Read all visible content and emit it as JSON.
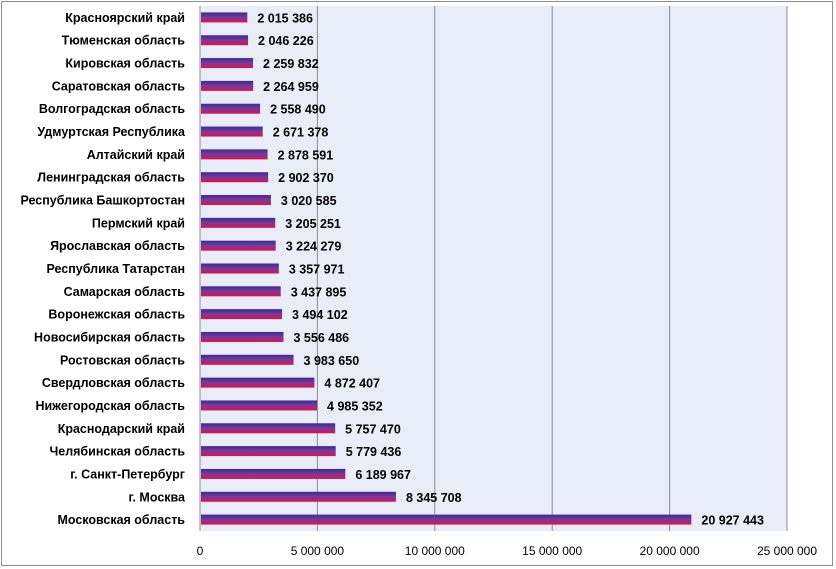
{
  "chart_data": {
    "type": "bar",
    "orientation": "horizontal",
    "title": "",
    "xlabel": "",
    "ylabel": "",
    "xlim": [
      0,
      25000000
    ],
    "x_ticks": [
      0,
      5000000,
      10000000,
      15000000,
      20000000,
      25000000
    ],
    "x_tick_labels": [
      "0",
      "5 000 000",
      "10 000 000",
      "15 000 000",
      "20 000 000",
      "25 000 000"
    ],
    "grid": "vertical",
    "legend": "none",
    "colors": {
      "plot_background": "#e9edf7",
      "bar_top": "#3a2a9a",
      "bar_middle": "#7a3a9a",
      "bar_bottom": "#e0104a",
      "gridline": "#8c8c8c"
    },
    "categories": [
      "Красноярский край",
      "Тюменская область",
      "Кировская область",
      "Саратовская область",
      "Волгоградская область",
      "Удмуртская Республика",
      "Алтайский край",
      "Ленинградская область",
      "Республика Башкортостан",
      "Пермский край",
      "Ярославская область",
      "Республика Татарстан",
      "Самарская область",
      "Воронежская область",
      "Новосибирская область",
      "Ростовская область",
      "Свердловская область",
      "Нижегородская область",
      "Краснодарский край",
      "Челябинская область",
      "г. Санкт-Петербург",
      "г. Москва",
      "Московская область"
    ],
    "values": [
      2015386,
      2046226,
      2259832,
      2264959,
      2558490,
      2671378,
      2878591,
      2902370,
      3020585,
      3205251,
      3224279,
      3357971,
      3437895,
      3494102,
      3556486,
      3983650,
      4872407,
      4985352,
      5757470,
      5779436,
      6189967,
      8345708,
      20927443
    ],
    "value_labels": [
      "2 015 386",
      "2 046 226",
      "2 259 832",
      "2 264 959",
      "2 558 490",
      "2 671 378",
      "2 878 591",
      "2 902 370",
      "3 020 585",
      "3 205 251",
      "3 224 279",
      "3 357 971",
      "3 437 895",
      "3 494 102",
      "3 556 486",
      "3 983 650",
      "4 872 407",
      "4 985 352",
      "5 757 470",
      "5 779 436",
      "6 189 967",
      "8 345 708",
      "20 927 443"
    ]
  }
}
